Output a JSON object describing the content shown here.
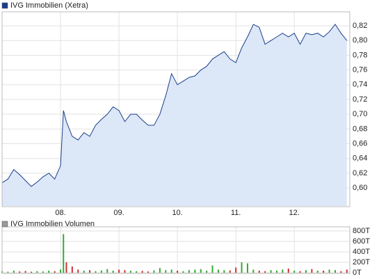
{
  "chart_data": [
    {
      "type": "area",
      "x": [
        7.0,
        7.1,
        7.2,
        7.3,
        7.4,
        7.5,
        7.6,
        7.7,
        7.8,
        7.9,
        8.0,
        8.05,
        8.1,
        8.2,
        8.3,
        8.4,
        8.5,
        8.6,
        8.7,
        8.8,
        8.9,
        9.0,
        9.1,
        9.2,
        9.3,
        9.4,
        9.5,
        9.6,
        9.7,
        9.8,
        9.9,
        10.0,
        10.1,
        10.2,
        10.3,
        10.4,
        10.5,
        10.6,
        10.7,
        10.8,
        10.9,
        11.0,
        11.1,
        11.2,
        11.3,
        11.4,
        11.5,
        11.6,
        11.7,
        11.8,
        11.9,
        12.0,
        12.1,
        12.2,
        12.3,
        12.4,
        12.5,
        12.6,
        12.7,
        12.8,
        12.9
      ],
      "series": [
        {
          "name": "IVG Immobilien (Xetra)",
          "color": "#1a3f8a",
          "fill": "#dce7f8",
          "values": [
            0.607,
            0.612,
            0.625,
            0.618,
            0.61,
            0.602,
            0.608,
            0.615,
            0.62,
            0.612,
            0.63,
            0.705,
            0.69,
            0.67,
            0.665,
            0.675,
            0.67,
            0.685,
            0.693,
            0.7,
            0.71,
            0.705,
            0.69,
            0.7,
            0.7,
            0.692,
            0.685,
            0.685,
            0.7,
            0.725,
            0.755,
            0.74,
            0.745,
            0.75,
            0.752,
            0.76,
            0.765,
            0.775,
            0.78,
            0.785,
            0.775,
            0.77,
            0.79,
            0.805,
            0.822,
            0.818,
            0.795,
            0.8,
            0.805,
            0.81,
            0.805,
            0.81,
            0.795,
            0.81,
            0.808,
            0.81,
            0.805,
            0.812,
            0.822,
            0.81,
            0.8
          ]
        }
      ],
      "xlim": [
        7,
        12.95
      ],
      "xticks": [
        {
          "value": 8,
          "label": "08."
        },
        {
          "value": 9,
          "label": "09."
        },
        {
          "value": 10,
          "label": "10."
        },
        {
          "value": 11,
          "label": "11."
        },
        {
          "value": 12,
          "label": "12."
        }
      ],
      "ylim": [
        0.5755,
        0.839
      ],
      "yticks": [
        {
          "value": 0.6,
          "label": "0,60"
        },
        {
          "value": 0.62,
          "label": "0,62"
        },
        {
          "value": 0.64,
          "label": "0,64"
        },
        {
          "value": 0.66,
          "label": "0,66"
        },
        {
          "value": 0.68,
          "label": "0,68"
        },
        {
          "value": 0.7,
          "label": "0,70"
        },
        {
          "value": 0.72,
          "label": "0,72"
        },
        {
          "value": 0.74,
          "label": "0,74"
        },
        {
          "value": 0.76,
          "label": "0,76"
        },
        {
          "value": 0.78,
          "label": "0,78"
        },
        {
          "value": 0.8,
          "label": "0,80"
        },
        {
          "value": 0.82,
          "label": "0,82"
        }
      ],
      "grid": true
    },
    {
      "type": "bar",
      "x": [
        7.0,
        7.1,
        7.2,
        7.3,
        7.4,
        7.5,
        7.6,
        7.7,
        7.8,
        7.9,
        8.0,
        8.05,
        8.1,
        8.2,
        8.3,
        8.4,
        8.5,
        8.6,
        8.7,
        8.8,
        8.9,
        9.0,
        9.1,
        9.2,
        9.3,
        9.4,
        9.5,
        9.6,
        9.7,
        9.8,
        9.9,
        10.0,
        10.1,
        10.2,
        10.3,
        10.4,
        10.5,
        10.6,
        10.7,
        10.8,
        10.9,
        11.0,
        11.1,
        11.2,
        11.3,
        11.4,
        11.5,
        11.6,
        11.7,
        11.8,
        11.9,
        12.0,
        12.1,
        12.2,
        12.3,
        12.4,
        12.5,
        12.6,
        12.7,
        12.8,
        12.9
      ],
      "series": [
        {
          "name": "IVG Immobilien Volumen",
          "color": "#999999",
          "up_color": "#33aa33",
          "down_color": "#cc3333",
          "values": [
            30,
            20,
            40,
            25,
            35,
            20,
            30,
            25,
            40,
            30,
            60,
            740,
            200,
            120,
            60,
            40,
            50,
            30,
            45,
            70,
            40,
            60,
            50,
            40,
            30,
            35,
            25,
            45,
            90,
            50,
            60,
            40,
            30,
            50,
            60,
            70,
            40,
            140,
            60,
            50,
            45,
            100,
            200,
            180,
            60,
            40,
            30,
            50,
            40,
            60,
            80,
            40,
            30,
            50,
            70,
            40,
            40,
            60,
            50,
            30,
            60
          ]
        }
      ],
      "xlim": [
        7,
        12.95
      ],
      "xticks": [
        {
          "value": 8,
          "label": "08."
        },
        {
          "value": 9,
          "label": "09."
        },
        {
          "value": 10,
          "label": "10."
        },
        {
          "value": 11,
          "label": "11."
        },
        {
          "value": 12,
          "label": "12."
        }
      ],
      "ylim": [
        0,
        880
      ],
      "yticks": [
        {
          "value": 0,
          "label": "0T"
        },
        {
          "value": 200,
          "label": "200T"
        },
        {
          "value": 400,
          "label": "400T"
        },
        {
          "value": 600,
          "label": "600T"
        },
        {
          "value": 800,
          "label": "800T"
        }
      ],
      "grid": true
    }
  ]
}
